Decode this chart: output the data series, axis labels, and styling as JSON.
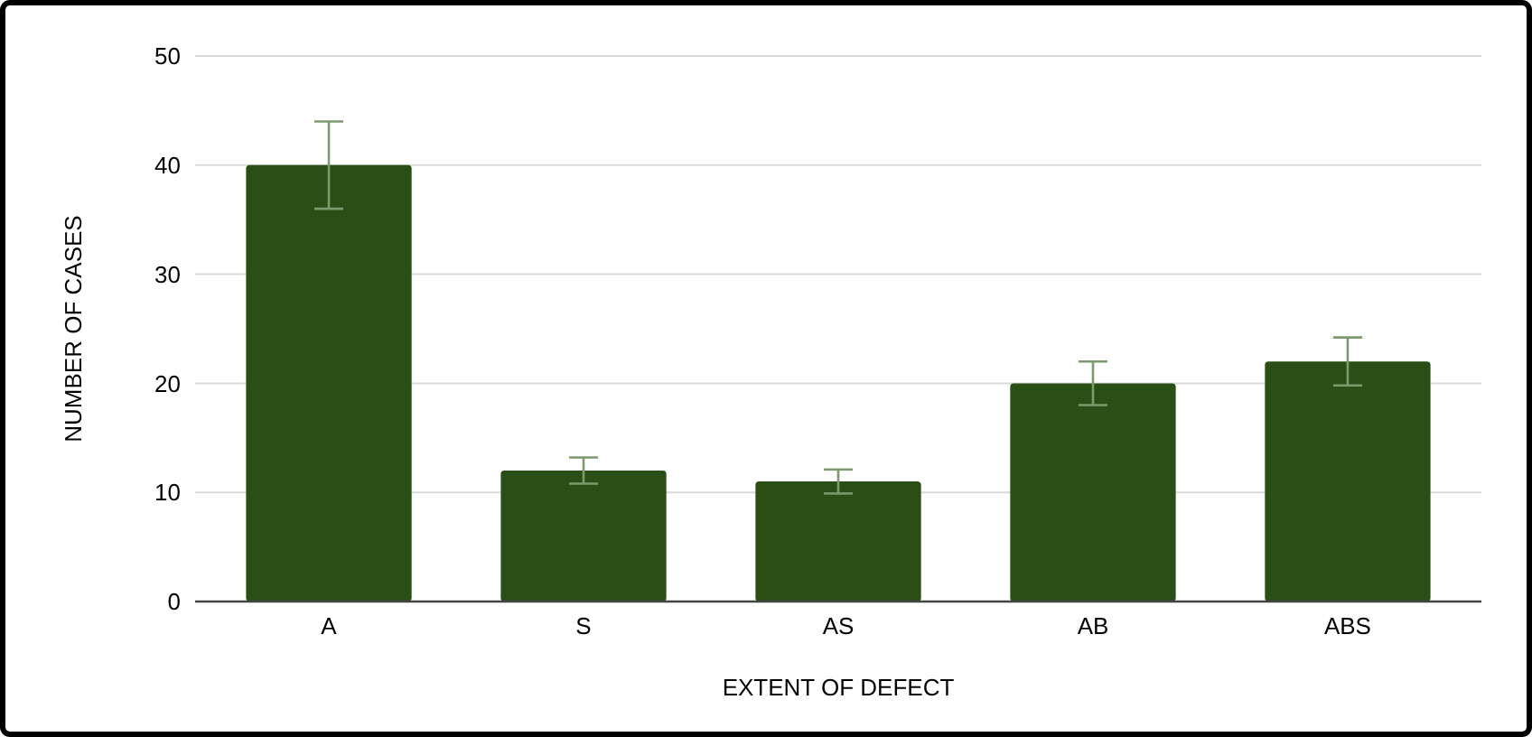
{
  "chart_data": {
    "type": "bar",
    "xlabel": "EXTENT OF DEFECT",
    "ylabel": "NUMBER OF CASES",
    "categories": [
      "A",
      "S",
      "AS",
      "AB",
      "ABS"
    ],
    "values": [
      40,
      12,
      11,
      20,
      22
    ],
    "errors": [
      4,
      1.2,
      1.1,
      2,
      2.2
    ],
    "color": "#294f16",
    "ylim": [
      0,
      50
    ],
    "yticks": [
      0,
      10,
      20,
      30,
      40,
      50
    ],
    "grid": "y"
  }
}
